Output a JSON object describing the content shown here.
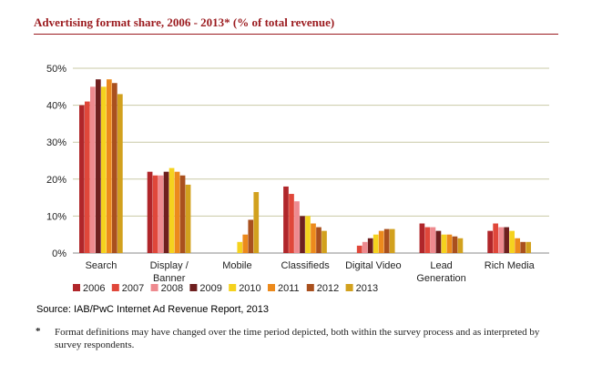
{
  "header": {
    "title": "Advertising format share, 2006 - 2013* (% of total revenue)"
  },
  "chart_data": {
    "type": "bar",
    "title": "Advertising format share, 2006 - 2013* (% of total revenue)",
    "xlabel": "",
    "ylabel": "",
    "ylim": [
      0,
      50
    ],
    "yticks": [
      "0%",
      "10%",
      "20%",
      "30%",
      "40%",
      "50%"
    ],
    "grid": true,
    "legend_position": "bottom",
    "categories": [
      "Search",
      "Display / Banner",
      "Mobile",
      "Classifieds",
      "Digital Video",
      "Lead Generation",
      "Rich Media"
    ],
    "category_lines": [
      [
        "Search"
      ],
      [
        "Display /",
        "Banner"
      ],
      [
        "Mobile"
      ],
      [
        "Classifieds"
      ],
      [
        "Digital Video"
      ],
      [
        "Lead",
        "Generation"
      ],
      [
        "Rich Media"
      ]
    ],
    "series": [
      {
        "name": "2006",
        "color": "#b0262a",
        "values": [
          40,
          22,
          0,
          18,
          0,
          8,
          6
        ]
      },
      {
        "name": "2007",
        "color": "#e0473a",
        "values": [
          41,
          21,
          0,
          16,
          2,
          7,
          8
        ]
      },
      {
        "name": "2008",
        "color": "#ee8a8f",
        "values": [
          45,
          21,
          0,
          14,
          3,
          7,
          7
        ]
      },
      {
        "name": "2009",
        "color": "#6e1f1f",
        "values": [
          47,
          22,
          0,
          10,
          4,
          6,
          7
        ]
      },
      {
        "name": "2010",
        "color": "#f5d21e",
        "values": [
          45,
          23,
          3,
          10,
          5,
          5,
          6
        ]
      },
      {
        "name": "2011",
        "color": "#ec8a1c",
        "values": [
          47,
          22,
          5,
          8,
          6,
          5,
          4
        ]
      },
      {
        "name": "2012",
        "color": "#a9501e",
        "values": [
          46,
          21,
          9,
          7,
          6.5,
          4.5,
          3
        ]
      },
      {
        "name": "2013",
        "color": "#d2a11e",
        "values": [
          43,
          18.5,
          16.5,
          6,
          6.5,
          4,
          3
        ]
      }
    ]
  },
  "footer": {
    "source": "Source: IAB/PwC Internet Ad Revenue Report, 2013",
    "footnote_mark": "*",
    "footnote": "Format definitions may have changed over the time period depicted, both within the survey process and as interpreted by survey respondents."
  }
}
